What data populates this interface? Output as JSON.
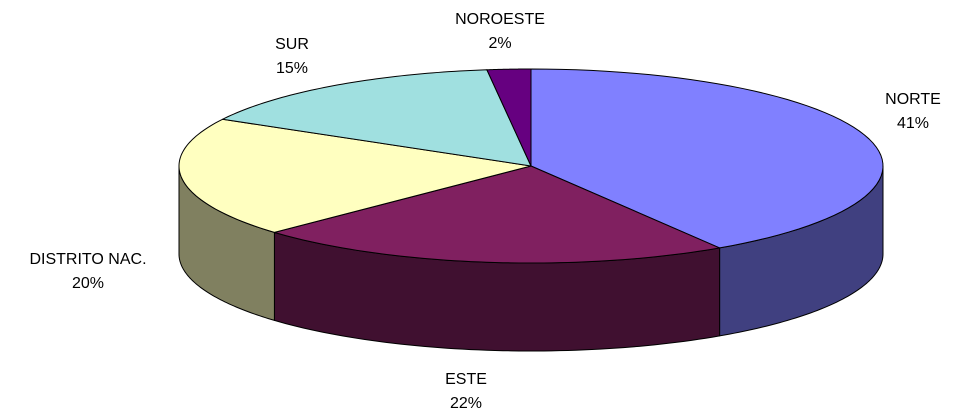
{
  "chart_data": {
    "type": "pie3d",
    "categories": [
      "NORTE",
      "ESTE",
      "DISTRITO NAC.",
      "SUR",
      "NOROESTE"
    ],
    "values": [
      41,
      22,
      20,
      15,
      2
    ],
    "value_labels": [
      "41%",
      "22%",
      "20%",
      "15%",
      "2%"
    ],
    "colors": [
      "#8080ff",
      "#802060",
      "#ffffc0",
      "#a0e0e0",
      "#660080"
    ]
  }
}
